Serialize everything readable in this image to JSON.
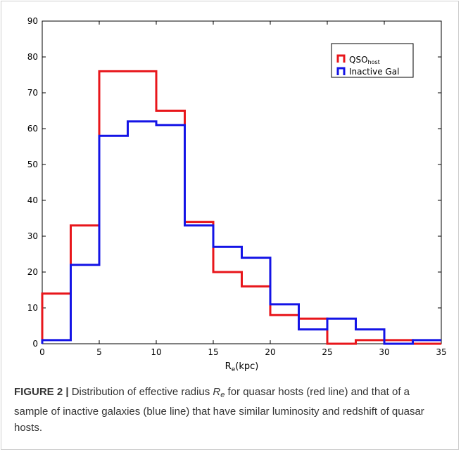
{
  "chart_data": {
    "type": "histogram",
    "xlabel": "R",
    "xlabel_sub": "e",
    "xlabel_unit": "(kpc)",
    "xlim": [
      0,
      35
    ],
    "ylim": [
      0,
      90
    ],
    "xticks": [
      0,
      5,
      10,
      15,
      20,
      25,
      30,
      35
    ],
    "yticks": [
      0,
      10,
      20,
      30,
      40,
      50,
      60,
      70,
      80,
      90
    ],
    "bin_edges": [
      0,
      2.5,
      5,
      7.5,
      10,
      12.5,
      15,
      17.5,
      20,
      22.5,
      25,
      27.5,
      30,
      32.5,
      35
    ],
    "legend_position": "top-right",
    "grid": false,
    "series": [
      {
        "name": "QSO",
        "name_sub": "host",
        "color": "#e8161b",
        "values": [
          14,
          33,
          76,
          76,
          65,
          34,
          20,
          16,
          8,
          7,
          0,
          1,
          1,
          0
        ]
      },
      {
        "name": "Inactive Gal",
        "name_sub": "",
        "color": "#1414e6",
        "values": [
          1,
          22,
          58,
          62,
          61,
          33,
          27,
          24,
          11,
          4,
          7,
          4,
          0,
          1
        ]
      }
    ]
  },
  "caption": {
    "label": "FIGURE 2 |",
    "text_before": "Distribution of effective radius",
    "symbol": "R",
    "symbol_sub": "e",
    "text_after": "for quasar hosts (red line) and that of a sample of inactive galaxies (blue line) that have similar luminosity and redshift of quasar hosts."
  }
}
